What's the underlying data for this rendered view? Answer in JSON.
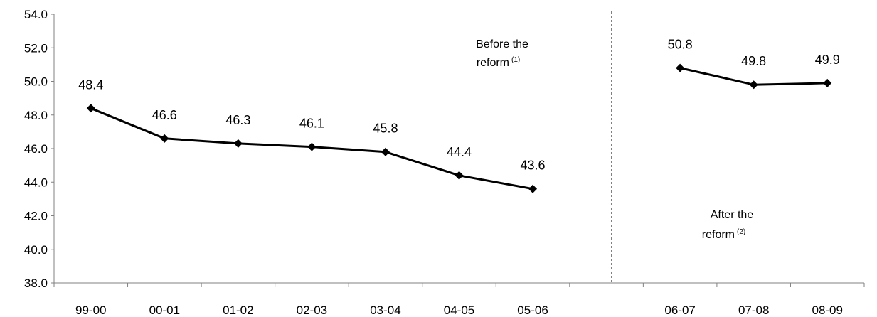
{
  "chart_data": {
    "type": "line",
    "categories": [
      "99-00",
      "00-01",
      "01-02",
      "02-03",
      "03-04",
      "04-05",
      "05-06",
      "",
      "06-07",
      "07-08",
      "08-09"
    ],
    "series": [
      {
        "segments": [
          {
            "x": [
              "99-00",
              "00-01",
              "01-02",
              "02-03",
              "03-04",
              "04-05",
              "05-06"
            ],
            "y": [
              48.4,
              46.6,
              46.3,
              46.1,
              45.8,
              44.4,
              43.6
            ],
            "labels": [
              "48.4",
              "46.6",
              "46.3",
              "46.1",
              "45.8",
              "44.4",
              "43.6"
            ]
          },
          {
            "x": [
              "06-07",
              "07-08",
              "08-09"
            ],
            "y": [
              50.8,
              49.8,
              49.9
            ],
            "labels": [
              "50.8",
              "49.8",
              "49.9"
            ]
          }
        ]
      }
    ],
    "ylim": [
      38.0,
      54.0
    ],
    "yticks": [
      "38.0",
      "40.0",
      "42.0",
      "44.0",
      "46.0",
      "48.0",
      "50.0",
      "52.0",
      "54.0"
    ],
    "grid": false,
    "color": "#000000",
    "marker": "diamond",
    "annotations": [
      {
        "line1": "Before the",
        "line2": "reform",
        "note": "(1)"
      },
      {
        "line1": "After the",
        "line2": "reform",
        "note": "(2)"
      }
    ]
  }
}
